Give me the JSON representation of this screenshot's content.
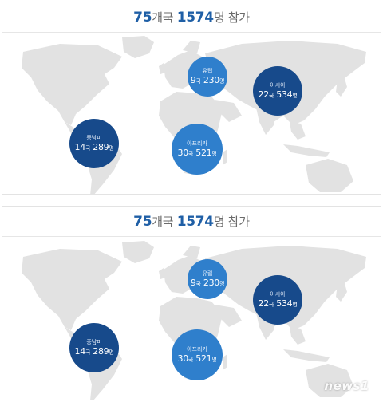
{
  "headline": {
    "countries": "75",
    "countries_unit": "개국",
    "participants": "1574",
    "participants_unit": "명 참가"
  },
  "regions": [
    {
      "name": "유럽",
      "countries": "9",
      "participants": "230"
    },
    {
      "name": "아시아",
      "countries": "22",
      "participants": "534"
    },
    {
      "name": "중남미",
      "countries": "14",
      "participants": "289"
    },
    {
      "name": "아프리카",
      "countries": "30",
      "participants": "521"
    }
  ],
  "labels": {
    "country_unit": "국",
    "person_unit": "명"
  },
  "colors": {
    "bubble_dark": "#174a8b",
    "bubble_light": "#2f7fcc",
    "accent": "#1f5fa6",
    "map": "#e2e2e2"
  },
  "watermark": "news1"
}
